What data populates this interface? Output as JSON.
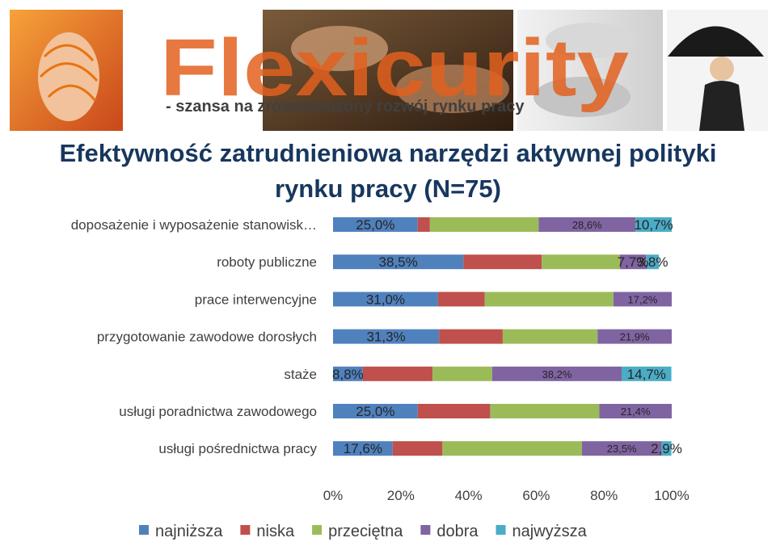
{
  "banner": {
    "logo_text": "Flexicurity",
    "tagline": "- szansa na zrównoważony rozwój rynku pracy"
  },
  "chart_data": {
    "type": "bar",
    "orientation": "horizontal",
    "stacked": "percent",
    "title": "Efektywność zatrudnieniowa narzędzi aktywnej polityki rynku pracy (N=75)",
    "categories": [
      "doposażenie i wyposażenie stanowisk…",
      "roboty publiczne",
      "prace interwencyjne",
      "przygotowanie zawodowe dorosłych",
      "staże",
      "usługi poradnictwa zawodowego",
      "usługi pośrednictwa pracy"
    ],
    "series": [
      {
        "name": "najniższa",
        "color": "#4f81bd",
        "values": [
          25.0,
          38.5,
          31.0,
          31.3,
          8.8,
          25.0,
          17.6
        ],
        "labels": [
          "25,0%",
          "38,5%",
          "31,0%",
          "31,3%",
          "8,8%",
          "25,0%",
          "17,6%"
        ]
      },
      {
        "name": "niska",
        "color": "#c0504d",
        "values": [
          3.6,
          23.1,
          13.8,
          18.8,
          20.6,
          21.4,
          14.7
        ],
        "labels": [
          "",
          "",
          "",
          "",
          "",
          "",
          ""
        ]
      },
      {
        "name": "przeciętna",
        "color": "#9bbb59",
        "values": [
          32.1,
          23.1,
          38.0,
          28.0,
          17.6,
          32.2,
          41.2
        ],
        "labels": [
          "",
          "",
          "",
          "",
          "",
          "",
          ""
        ]
      },
      {
        "name": "dobra",
        "color": "#8064a2",
        "values": [
          28.6,
          7.7,
          17.2,
          21.9,
          38.2,
          21.4,
          23.5
        ],
        "labels": [
          "28,6%",
          "7,7%",
          "17,2%",
          "21,9%",
          "38,2%",
          "21,4%",
          "23,5%"
        ]
      },
      {
        "name": "najwyższa",
        "color": "#4bacc6",
        "values": [
          10.7,
          3.8,
          0,
          0,
          14.7,
          0,
          2.9
        ],
        "labels": [
          "10,7%",
          "3,8%",
          "",
          "",
          "14,7%",
          "",
          "2,9%"
        ]
      }
    ],
    "xlim": [
      0,
      100
    ],
    "xticks": [
      "0%",
      "20%",
      "40%",
      "60%",
      "80%",
      "100%"
    ],
    "legend_position": "bottom"
  }
}
